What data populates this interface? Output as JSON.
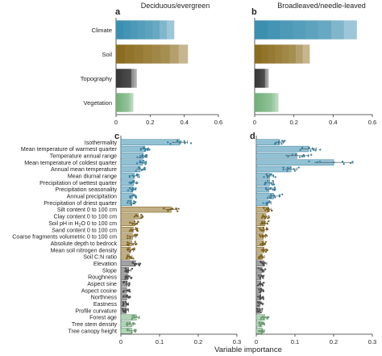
{
  "colors": {
    "climate": "#3b8fb0",
    "soil": "#8c6d1f",
    "topography": "#555555",
    "vegetation": "#72b07a",
    "axis": "#333333"
  },
  "axes": {
    "xlabel": "Variable importance"
  },
  "chart_data": [
    {
      "panel": "a",
      "title": "Deciduous/evergreen",
      "type": "bar",
      "orientation": "horizontal",
      "stacked_segments": true,
      "categories": [
        "Climate",
        "Soil",
        "Topography",
        "Vegetation"
      ],
      "values": [
        0.34,
        0.42,
        0.12,
        0.1
      ],
      "xlim": [
        0,
        0.6
      ],
      "xticks": [
        "0",
        "0.2",
        "0.4",
        "0.6"
      ],
      "grid": false
    },
    {
      "panel": "b",
      "title": "Broadleaved/needle-leaved",
      "type": "bar",
      "orientation": "horizontal",
      "stacked_segments": true,
      "categories": [
        "Climate",
        "Soil",
        "Topography",
        "Vegetation"
      ],
      "values": [
        0.52,
        0.28,
        0.07,
        0.12
      ],
      "xlim": [
        0,
        0.6
      ],
      "xticks": [
        "0",
        "0.2",
        "0.4",
        "0.6"
      ],
      "grid": false
    },
    {
      "panel": "c",
      "type": "bar",
      "orientation": "horizontal",
      "error_bars": true,
      "scatter_overlay": true,
      "xlabel": "Variable importance",
      "xlim": [
        0,
        0.3
      ],
      "xticks": [
        "0",
        "0.1",
        "0.2",
        "0.3"
      ],
      "variables": [
        {
          "label": "Isothermality",
          "group": "climate",
          "value": 0.152,
          "err": 0.02
        },
        {
          "label": "Mean temperature of warmest quarter",
          "group": "climate",
          "value": 0.062,
          "err": 0.01
        },
        {
          "label": "Temperature annual range",
          "group": "climate",
          "value": 0.058,
          "err": 0.01
        },
        {
          "label": "Mean temperature of coldest quarter",
          "group": "climate",
          "value": 0.056,
          "err": 0.01
        },
        {
          "label": "Annual mean temperature",
          "group": "climate",
          "value": 0.05,
          "err": 0.01
        },
        {
          "label": "Mean diurnal range",
          "group": "climate",
          "value": 0.035,
          "err": 0.008
        },
        {
          "label": "Precipitation of wettest quarter",
          "group": "climate",
          "value": 0.033,
          "err": 0.008
        },
        {
          "label": "Precipitation seasonality",
          "group": "climate",
          "value": 0.031,
          "err": 0.008
        },
        {
          "label": "Annual precipitation",
          "group": "climate",
          "value": 0.03,
          "err": 0.008
        },
        {
          "label": "Precipitation of driest quarter",
          "group": "climate",
          "value": 0.028,
          "err": 0.008
        },
        {
          "label": "Silt content 0 to 100 cm",
          "group": "soil",
          "value": 0.13,
          "err": 0.015
        },
        {
          "label": "Clay content 0 to 100 cm",
          "group": "soil",
          "value": 0.045,
          "err": 0.01
        },
        {
          "label": "Soil pH in H",
          "label_sub": "2",
          "label_tail": "O 0 to 100 cm",
          "group": "soil",
          "value": 0.035,
          "err": 0.008
        },
        {
          "label": "Sand content 0 to 100 cm",
          "group": "soil",
          "value": 0.032,
          "err": 0.008
        },
        {
          "label": "Coarse fragments volumetric 0 to 100 cm",
          "group": "soil",
          "value": 0.03,
          "err": 0.008
        },
        {
          "label": "Absolute depth to bedrock",
          "group": "soil",
          "value": 0.028,
          "err": 0.008
        },
        {
          "label": "Mean soil nitrogen density",
          "group": "soil",
          "value": 0.025,
          "err": 0.007
        },
        {
          "label": "Soil C:N ratio",
          "group": "soil",
          "value": 0.022,
          "err": 0.007
        },
        {
          "label": "Elevation",
          "group": "topography",
          "value": 0.038,
          "err": 0.008
        },
        {
          "label": "Slope",
          "group": "topography",
          "value": 0.02,
          "err": 0.006
        },
        {
          "label": "Roughness",
          "group": "topography",
          "value": 0.018,
          "err": 0.006
        },
        {
          "label": "Aspect sine",
          "group": "topography",
          "value": 0.016,
          "err": 0.006
        },
        {
          "label": "Aspect cosine",
          "group": "topography",
          "value": 0.015,
          "err": 0.006
        },
        {
          "label": "Northness",
          "group": "topography",
          "value": 0.015,
          "err": 0.006
        },
        {
          "label": "Eastness",
          "group": "topography",
          "value": 0.014,
          "err": 0.006
        },
        {
          "label": "Profile curvature",
          "group": "topography",
          "value": 0.014,
          "err": 0.006
        },
        {
          "label": "Forest age",
          "group": "vegetation",
          "value": 0.04,
          "err": 0.008
        },
        {
          "label": "Tree stem density",
          "group": "vegetation",
          "value": 0.025,
          "err": 0.007
        },
        {
          "label": "Tree canopy height",
          "group": "vegetation",
          "value": 0.028,
          "err": 0.007
        }
      ]
    },
    {
      "panel": "d",
      "type": "bar",
      "orientation": "horizontal",
      "error_bars": true,
      "scatter_overlay": true,
      "xlabel": "Variable importance",
      "xlim": [
        0,
        0.3
      ],
      "xticks": [
        "0",
        "0.1",
        "0.2",
        "0.3"
      ],
      "values": [
        0.06,
        0.135,
        0.105,
        0.2,
        0.09,
        0.035,
        0.035,
        0.033,
        0.045,
        0.03,
        0.03,
        0.025,
        0.022,
        0.02,
        0.018,
        0.018,
        0.02,
        0.015,
        0.02,
        0.015,
        0.012,
        0.012,
        0.012,
        0.012,
        0.01,
        0.01,
        0.022,
        0.015,
        0.015
      ],
      "errors": [
        0.01,
        0.02,
        0.03,
        0.05,
        0.015,
        0.01,
        0.01,
        0.01,
        0.015,
        0.008,
        0.008,
        0.008,
        0.007,
        0.007,
        0.006,
        0.006,
        0.007,
        0.006,
        0.007,
        0.006,
        0.005,
        0.005,
        0.005,
        0.005,
        0.005,
        0.005,
        0.007,
        0.006,
        0.006
      ]
    }
  ]
}
